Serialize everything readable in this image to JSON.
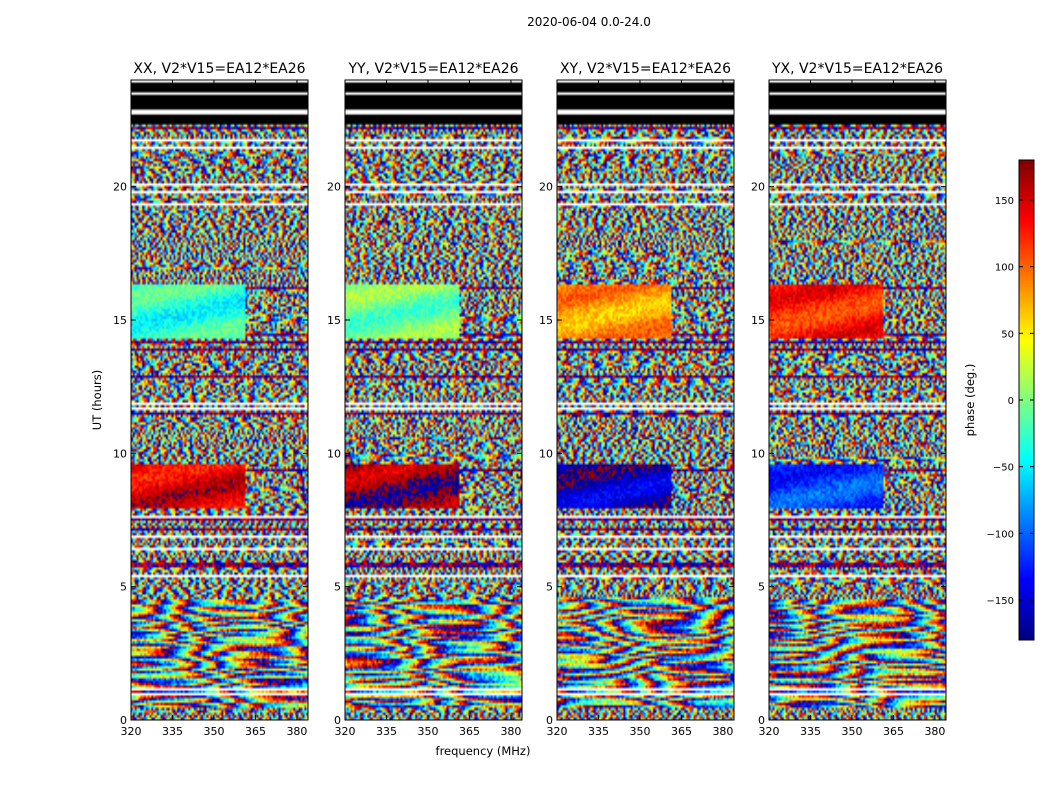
{
  "figure_title": "2020-06-04 0.0-24.0",
  "chart_data": {
    "type": "heatmap",
    "suptitle": "2020-06-04 0.0-24.0",
    "xlabel": "frequency (MHz)",
    "ylabel": "UT (hours)",
    "xlim": [
      320,
      384
    ],
    "ylim": [
      0,
      24
    ],
    "x_ticks": [
      320,
      335,
      350,
      365,
      380
    ],
    "y_ticks": [
      0,
      5,
      10,
      15,
      20
    ],
    "panels": [
      {
        "title": "XX, V2*V15=EA12*EA26",
        "polarization": "XX"
      },
      {
        "title": "YY, V2*V15=EA12*EA26",
        "polarization": "YY"
      },
      {
        "title": "XY, V2*V15=EA12*EA26",
        "polarization": "XY"
      },
      {
        "title": "YX, V2*V15=EA12*EA26",
        "polarization": "YX"
      }
    ],
    "colorbar": {
      "label": "phase (deg.)",
      "range": [
        -180,
        180
      ],
      "ticks": [
        150,
        100,
        50,
        0,
        -50,
        -100,
        -150
      ],
      "tick_labels": [
        "150",
        "100",
        "50",
        "0",
        "−50",
        "−100",
        "−150"
      ],
      "colormap": "jet"
    },
    "flagged_ut_bands": [
      [
        22.3,
        22.75
      ],
      [
        22.85,
        23.4
      ],
      [
        23.55,
        23.95
      ]
    ],
    "coherent_ut_bands": [
      [
        14.3,
        16.3
      ],
      [
        7.9,
        9.6
      ]
    ]
  },
  "colors": {
    "flag": "#000000",
    "frame": "#000000",
    "background": "#ffffff"
  }
}
